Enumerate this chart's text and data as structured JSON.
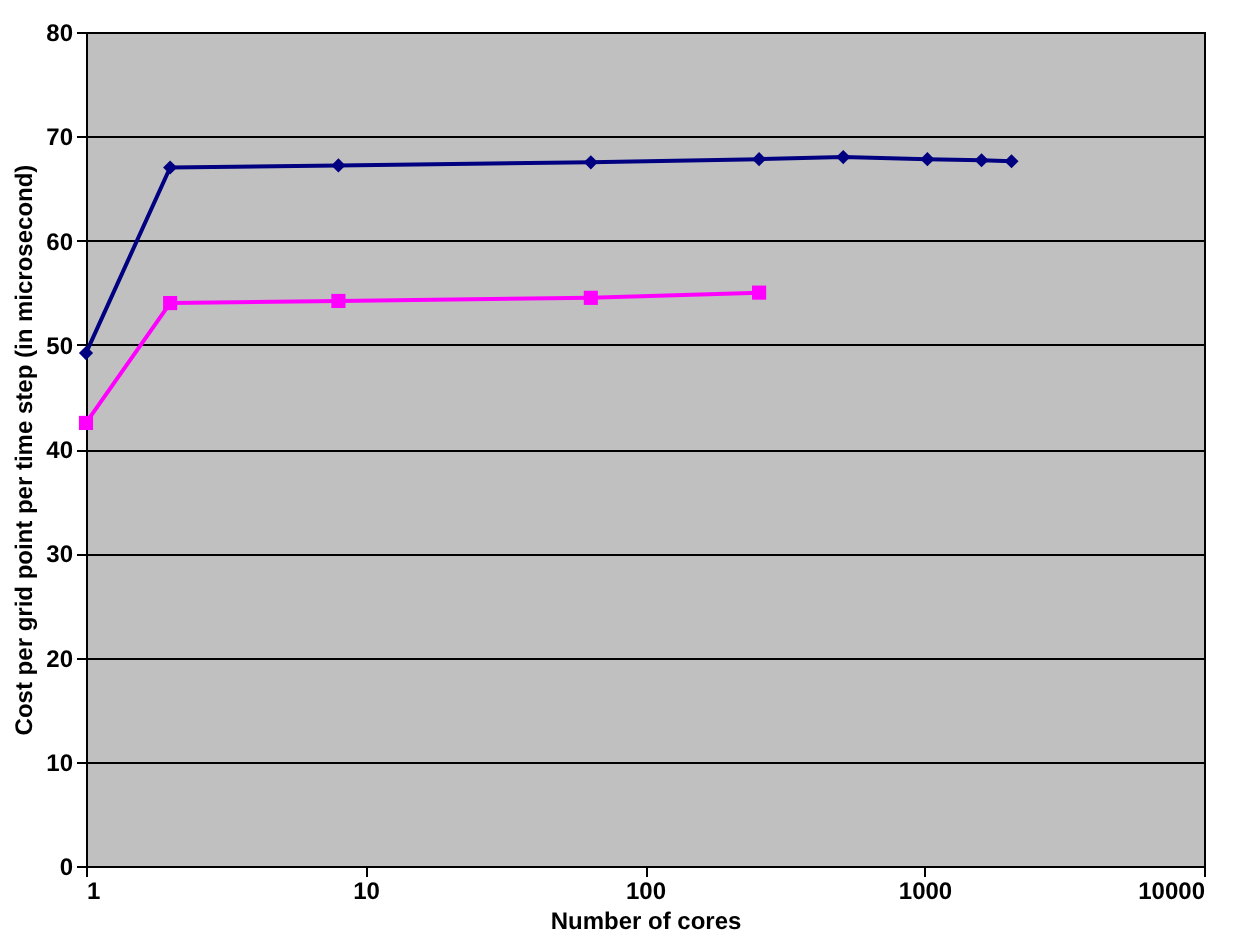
{
  "chart_data": {
    "type": "line",
    "xlabel": "Number of cores",
    "ylabel": "Cost per grid point per time step (in microsecond)",
    "log": "x",
    "xlim": [
      1,
      10000
    ],
    "xticks": [
      1,
      10,
      100,
      1000,
      10000
    ],
    "ylim": [
      0,
      80
    ],
    "yticks": [
      0,
      10,
      20,
      30,
      40,
      50,
      60,
      70,
      80
    ],
    "grid": "y",
    "legend": false,
    "series": [
      {
        "color": "#000080",
        "marker": "diamond",
        "x": [
          1,
          2,
          8,
          64,
          256,
          512,
          1024,
          1600,
          2048
        ],
        "values": [
          49.2,
          67,
          67.2,
          67.5,
          67.8,
          68,
          67.8,
          67.7,
          67.6
        ]
      },
      {
        "color": "#ff00ff",
        "marker": "square",
        "x": [
          1,
          2,
          8,
          64,
          256
        ],
        "values": [
          42.5,
          54,
          54.2,
          54.5,
          55
        ]
      }
    ]
  }
}
